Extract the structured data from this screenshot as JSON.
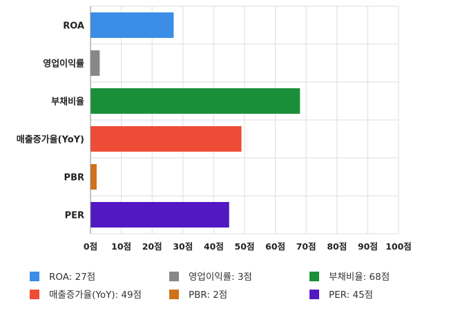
{
  "chart_data": {
    "type": "bar",
    "orientation": "horizontal",
    "categories": [
      "ROA",
      "영업이익률",
      "부채비율",
      "매출증가율(YoY)",
      "PBR",
      "PER"
    ],
    "values": [
      27,
      3,
      68,
      49,
      2,
      45
    ],
    "colors": [
      "#3b8de6",
      "#888888",
      "#1a8f3a",
      "#ee4c37",
      "#cf7219",
      "#5218c2"
    ],
    "xlim": [
      0,
      100
    ],
    "x_ticks": [
      0,
      10,
      20,
      30,
      40,
      50,
      60,
      70,
      80,
      90,
      100
    ],
    "tick_unit": "점",
    "grid": true,
    "legend_position": "bottom",
    "legend": [
      "ROA: 27점",
      "영업이익률: 3점",
      "부채비율: 68점",
      "매출증가율(YoY): 49점",
      "PBR: 2점",
      "PER: 45점"
    ]
  }
}
